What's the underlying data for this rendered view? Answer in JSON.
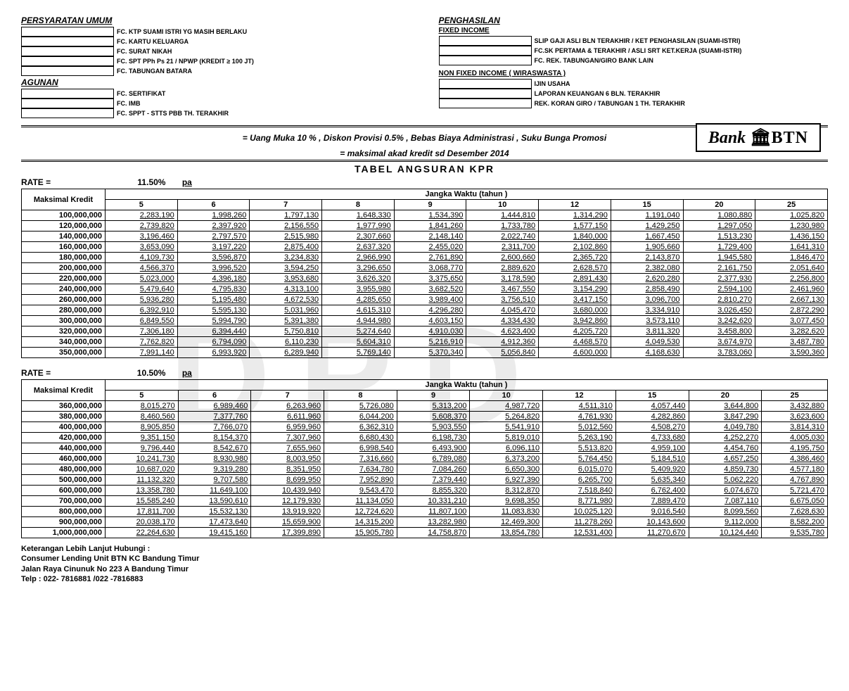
{
  "sections": {
    "persyaratan_umum": "PERSYARATAN UMUM",
    "agunan": "AGUNAN",
    "penghasilan": "PENGHASILAN",
    "fixed_income": "FIXED INCOME",
    "non_fixed_income": "NON FIXED INCOME ( WIRASWASTA )"
  },
  "req_left_1": [
    "FC. KTP SUAMI ISTRI YG MASIH BERLAKU",
    "FC. KARTU KELUARGA",
    "FC. SURAT NIKAH",
    "FC. SPT PPh Ps 21 / NPWP (KREDIT ≥ 100 JT)",
    "FC. TABUNGAN BATARA"
  ],
  "req_left_2": [
    "FC. SERTIFIKAT",
    "FC. IMB",
    "FC. SPPT - STTS PBB TH. TERAKHIR"
  ],
  "req_right_1": [
    "SLIP GAJI ASLI BLN TERAKHIR / KET PENGHASILAN (SUAMI-ISTRI)",
    "FC.SK PERTAMA & TERAKHIR / ASLI SRT KET.KERJA (SUAMI-ISTRI)",
    "FC. REK. TABUNGAN/GIRO BANK LAIN"
  ],
  "req_right_2": [
    "IJIN USAHA",
    "LAPORAN KEUANGAN 6 BLN. TERAKHIR",
    "REK. KORAN GIRO / TABUNGAN 1 TH. TERAKHIR"
  ],
  "promo1": "= Uang Muka 10 % , Diskon Provisi 0.5% , Bebas Biaya Administrasi , Suku Bunga Promosi",
  "promo2": "= maksimal akad kredit sd Desember 2014",
  "logo_bank": "Bank",
  "logo_btn": "BTN",
  "table_title": "TABEL  ANGSURAN  KPR",
  "rate_label": "RATE   =",
  "pa": "pa",
  "header_maks": "Maksimal  Kredit",
  "header_jangka": "Jangka   Waktu  (tahun )",
  "tenors": [
    "5",
    "6",
    "7",
    "8",
    "9",
    "10",
    "12",
    "15",
    "20",
    "25"
  ],
  "table1": {
    "rate": "11.50%",
    "rows": [
      {
        "k": "100,000,000",
        "v": [
          "2,283,190",
          "1,998,260",
          "1,797,130",
          "1,648,330",
          "1,534,390",
          "1,444,810",
          "1,314,290",
          "1,191,040",
          "1,080,880",
          "1,025,820"
        ]
      },
      {
        "k": "120,000,000",
        "v": [
          "2,739,820",
          "2,397,920",
          "2,156,550",
          "1,977,990",
          "1,841,260",
          "1,733,780",
          "1,577,150",
          "1,429,250",
          "1,297,050",
          "1,230,980"
        ]
      },
      {
        "k": "140,000,000",
        "v": [
          "3,196,460",
          "2,797,570",
          "2,515,980",
          "2,307,660",
          "2,148,140",
          "2,022,740",
          "1,840,000",
          "1,667,450",
          "1,513,230",
          "1,436,150"
        ]
      },
      {
        "k": "160,000,000",
        "v": [
          "3,653,090",
          "3,197,220",
          "2,875,400",
          "2,637,320",
          "2,455,020",
          "2,311,700",
          "2,102,860",
          "1,905,660",
          "1,729,400",
          "1,641,310"
        ]
      },
      {
        "k": "180,000,000",
        "v": [
          "4,109,730",
          "3,596,870",
          "3,234,830",
          "2,966,990",
          "2,761,890",
          "2,600,660",
          "2,365,720",
          "2,143,870",
          "1,945,580",
          "1,846,470"
        ]
      },
      {
        "k": "200,000,000",
        "v": [
          "4,566,370",
          "3,996,520",
          "3,594,250",
          "3,296,650",
          "3,068,770",
          "2,889,620",
          "2,628,570",
          "2,382,080",
          "2,161,750",
          "2,051,640"
        ]
      },
      {
        "k": "220,000,000",
        "v": [
          "5,023,000",
          "4,396,180",
          "3,953,680",
          "3,626,320",
          "3,375,650",
          "3,178,590",
          "2,891,430",
          "2,620,280",
          "2,377,930",
          "2,256,800"
        ]
      },
      {
        "k": "240,000,000",
        "v": [
          "5,479,640",
          "4,795,830",
          "4,313,100",
          "3,955,980",
          "3,682,520",
          "3,467,550",
          "3,154,290",
          "2,858,490",
          "2,594,100",
          "2,461,960"
        ]
      },
      {
        "k": "260,000,000",
        "v": [
          "5,936,280",
          "5,195,480",
          "4,672,530",
          "4,285,650",
          "3,989,400",
          "3,756,510",
          "3,417,150",
          "3,096,700",
          "2,810,270",
          "2,667,130"
        ]
      },
      {
        "k": "280,000,000",
        "v": [
          "6,392,910",
          "5,595,130",
          "5,031,960",
          "4,615,310",
          "4,296,280",
          "4,045,470",
          "3,680,000",
          "3,334,910",
          "3,026,450",
          "2,872,290"
        ]
      },
      {
        "k": "300,000,000",
        "v": [
          "6,849,550",
          "5,994,790",
          "5,391,380",
          "4,944,980",
          "4,603,150",
          "4,334,430",
          "3,942,860",
          "3,573,110",
          "3,242,620",
          "3,077,450"
        ]
      },
      {
        "k": "320,000,000",
        "v": [
          "7,306,180",
          "6,394,440",
          "5,750,810",
          "5,274,640",
          "4,910,030",
          "4,623,400",
          "4,205,720",
          "3,811,320",
          "3,458,800",
          "3,282,620"
        ]
      },
      {
        "k": "340,000,000",
        "v": [
          "7,762,820",
          "6,794,090",
          "6,110,230",
          "5,604,310",
          "5,216,910",
          "4,912,360",
          "4,468,570",
          "4,049,530",
          "3,674,970",
          "3,487,780"
        ]
      },
      {
        "k": "350,000,000",
        "v": [
          "7,991,140",
          "6,993,920",
          "6,289,940",
          "5,769,140",
          "5,370,340",
          "5,056,840",
          "4,600,000",
          "4,168,630",
          "3,783,060",
          "3,590,360"
        ]
      }
    ]
  },
  "table2": {
    "rate": "10.50%",
    "rows": [
      {
        "k": "360,000,000",
        "v": [
          "8,015,270",
          "6,989,460",
          "6,263,960",
          "5,726,080",
          "5,313,200",
          "4,987,720",
          "4,511,310",
          "4,057,440",
          "3,644,800",
          "3,432,880"
        ]
      },
      {
        "k": "380,000,000",
        "v": [
          "8,460,560",
          "7,377,760",
          "6,611,960",
          "6,044,200",
          "5,608,370",
          "5,264,820",
          "4,761,930",
          "4,282,860",
          "3,847,290",
          "3,623,600"
        ]
      },
      {
        "k": "400,000,000",
        "v": [
          "8,905,850",
          "7,766,070",
          "6,959,960",
          "6,362,310",
          "5,903,550",
          "5,541,910",
          "5,012,560",
          "4,508,270",
          "4,049,780",
          "3,814,310"
        ]
      },
      {
        "k": "420,000,000",
        "v": [
          "9,351,150",
          "8,154,370",
          "7,307,960",
          "6,680,430",
          "6,198,730",
          "5,819,010",
          "5,263,190",
          "4,733,680",
          "4,252,270",
          "4,005,030"
        ]
      },
      {
        "k": "440,000,000",
        "v": [
          "9,796,440",
          "8,542,670",
          "7,655,960",
          "6,998,540",
          "6,493,900",
          "6,096,110",
          "5,513,820",
          "4,959,100",
          "4,454,760",
          "4,195,750"
        ]
      },
      {
        "k": "460,000,000",
        "v": [
          "10,241,730",
          "8,930,980",
          "8,003,950",
          "7,316,660",
          "6,789,080",
          "6,373,200",
          "5,764,450",
          "5,184,510",
          "4,657,250",
          "4,386,460"
        ]
      },
      {
        "k": "480,000,000",
        "v": [
          "10,687,020",
          "9,319,280",
          "8,351,950",
          "7,634,780",
          "7,084,260",
          "6,650,300",
          "6,015,070",
          "5,409,920",
          "4,859,730",
          "4,577,180"
        ]
      },
      {
        "k": "500,000,000",
        "v": [
          "11,132,320",
          "9,707,580",
          "8,699,950",
          "7,952,890",
          "7,379,440",
          "6,927,390",
          "6,265,700",
          "5,635,340",
          "5,062,220",
          "4,767,890"
        ]
      },
      {
        "k": "600,000,000",
        "v": [
          "13,358,780",
          "11,649,100",
          "10,439,940",
          "9,543,470",
          "8,855,320",
          "8,312,870",
          "7,518,840",
          "6,762,400",
          "6,074,670",
          "5,721,470"
        ]
      },
      {
        "k": "700,000,000",
        "v": [
          "15,585,240",
          "13,590,610",
          "12,179,930",
          "11,134,050",
          "10,331,210",
          "9,698,350",
          "8,771,980",
          "7,889,470",
          "7,087,110",
          "6,675,050"
        ]
      },
      {
        "k": "800,000,000",
        "v": [
          "17,811,700",
          "15,532,130",
          "13,919,920",
          "12,724,620",
          "11,807,100",
          "11,083,830",
          "10,025,120",
          "9,016,540",
          "8,099,560",
          "7,628,630"
        ]
      },
      {
        "k": "900,000,000",
        "v": [
          "20,038,170",
          "17,473,640",
          "15,659,900",
          "14,315,200",
          "13,282,980",
          "12,469,300",
          "11,278,260",
          "10,143,600",
          "9,112,000",
          "8,582,200"
        ]
      },
      {
        "k": "1,000,000,000",
        "v": [
          "22,264,630",
          "19,415,160",
          "17,399,890",
          "15,905,780",
          "14,758,870",
          "13,854,780",
          "12,531,400",
          "11,270,670",
          "10,124,440",
          "9,535,780"
        ]
      }
    ]
  },
  "footer": {
    "l1": "Keterangan Lebih Lanjut Hubungi :",
    "l2": "Consumer Lending Unit BTN KC Bandung Timur",
    "l3": "Jalan Raya Cinunuk No 223 A Bandung Timur",
    "l4": "Telp : 022- 7816881 /022 -7816883"
  },
  "watermark": "DPD"
}
